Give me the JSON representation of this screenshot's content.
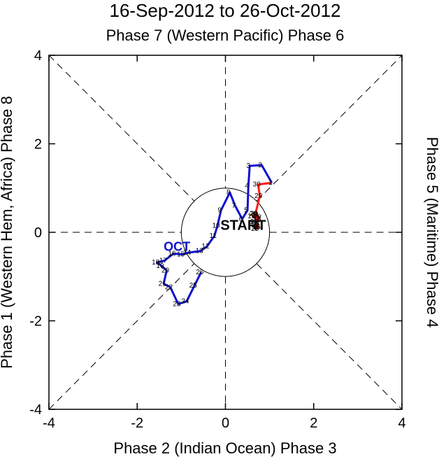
{
  "chart_data": {
    "type": "line",
    "title": "16-Sep-2012 to 26-Oct-2012",
    "phase_labels": {
      "top": "Phase 7 (Western Pacific) Phase 6",
      "bottom": "Phase 2 (Indian Ocean) Phase 3",
      "left": "Phase 1 (Western Hem, Africa) Phase 8",
      "right": "Phase 5 (Maritime) Phase 4"
    },
    "xlim": [
      -4,
      4
    ],
    "ylim": [
      -4,
      4
    ],
    "x_ticks": [
      -4,
      -2,
      0,
      2,
      4
    ],
    "y_ticks": [
      -4,
      -2,
      0,
      2,
      4
    ],
    "x_tick_labels": [
      "-4",
      "-2",
      "0",
      "2",
      "4"
    ],
    "y_tick_labels": [
      "-4",
      "-2",
      "0",
      "2",
      "4"
    ],
    "unit_circle_radius": 1,
    "annotations": {
      "start": "START",
      "month_oct": "OCT"
    },
    "colors": {
      "sep": "#ff1a1a",
      "oct": "#1010d0",
      "axes": "#000000"
    },
    "series": [
      {
        "name": "Sep",
        "color": "#ff1a1a",
        "labels": [
          "16",
          "17",
          "18",
          "19",
          "20",
          "21",
          "22",
          "23",
          "24",
          "25",
          "26",
          "27",
          "28",
          "29",
          "30"
        ],
        "x": [
          0.72,
          0.68,
          0.75,
          0.62,
          0.66,
          0.72,
          0.76,
          0.68,
          0.72,
          0.7,
          0.74,
          0.72,
          0.68,
          0.78,
          0.74
        ],
        "y": [
          0.12,
          0.2,
          0.3,
          0.36,
          0.42,
          0.38,
          0.34,
          0.24,
          0.16,
          0.08,
          0.12,
          0.18,
          0.42,
          0.82,
          1.08
        ]
      },
      {
        "name": "Oct",
        "color": "#1010d0",
        "labels": [
          "1",
          "2",
          "3",
          "4",
          "5",
          "6",
          "7",
          "8",
          "9",
          "10",
          "11",
          "12",
          "13",
          "14",
          "15",
          "16",
          "17",
          "18",
          "19",
          "20",
          "21",
          "22",
          "23",
          "24",
          "25",
          "26"
        ],
        "x": [
          1.05,
          0.82,
          0.55,
          0.52,
          0.5,
          0.38,
          0.22,
          0.1,
          -0.1,
          -0.18,
          -0.25,
          -0.42,
          -0.56,
          -0.84,
          -0.98,
          -1.18,
          -1.38,
          -1.55,
          -1.45,
          -1.33,
          -1.4,
          -1.25,
          -1.07,
          -0.88,
          -0.7,
          -0.55
        ],
        "y": [
          1.12,
          1.52,
          1.5,
          1.05,
          0.5,
          0.3,
          0.6,
          0.9,
          0.5,
          0.15,
          -0.08,
          -0.32,
          -0.42,
          -0.46,
          -0.5,
          -0.48,
          -0.64,
          -0.68,
          -0.76,
          -0.86,
          -1.16,
          -1.24,
          -1.62,
          -1.56,
          -1.2,
          -0.9
        ]
      }
    ]
  }
}
